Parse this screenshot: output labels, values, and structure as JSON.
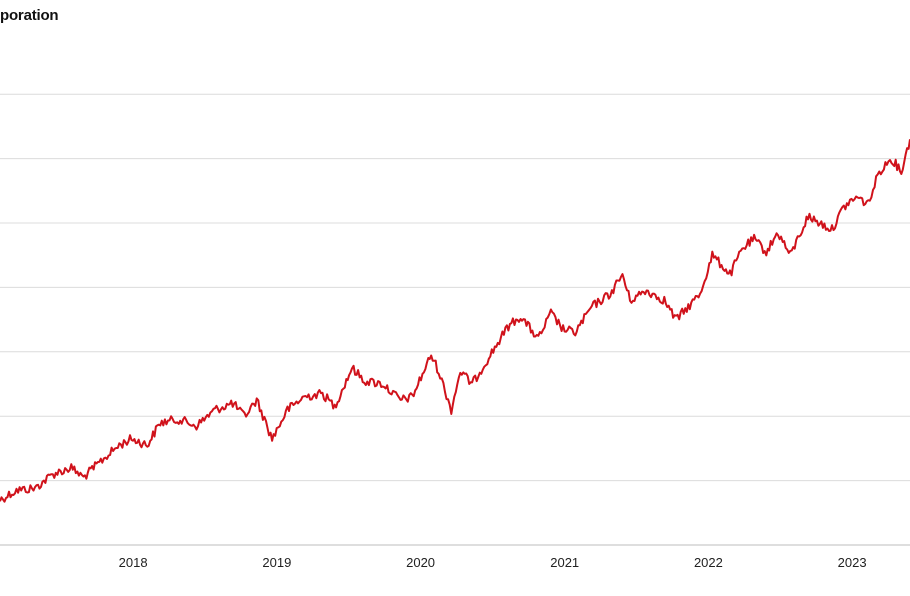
{
  "chart_data": {
    "type": "line",
    "title": "poration",
    "xlabel": "",
    "ylabel": "",
    "x_tick_labels": [
      "2018",
      "2019",
      "2020",
      "2021",
      "2022",
      "2023"
    ],
    "xlim": [
      "2017-02-01",
      "2023-06-01"
    ],
    "ylim": [
      0,
      7
    ],
    "grid": true,
    "legend": "none",
    "series": [
      {
        "color": "#d0121b",
        "points": [
          [
            "2017-02-01",
            0.7
          ],
          [
            "2017-03-15",
            0.85
          ],
          [
            "2017-05-01",
            0.88
          ],
          [
            "2017-06-15",
            1.1
          ],
          [
            "2017-08-01",
            1.2
          ],
          [
            "2017-09-01",
            1.05
          ],
          [
            "2017-10-15",
            1.3
          ],
          [
            "2017-12-01",
            1.55
          ],
          [
            "2018-01-01",
            1.65
          ],
          [
            "2018-02-10",
            1.55
          ],
          [
            "2018-03-15",
            1.9
          ],
          [
            "2018-05-01",
            1.95
          ],
          [
            "2018-06-15",
            1.85
          ],
          [
            "2018-08-01",
            2.1
          ],
          [
            "2018-09-15",
            2.2
          ],
          [
            "2018-10-15",
            2.0
          ],
          [
            "2018-11-15",
            2.25
          ],
          [
            "2018-12-24",
            1.65
          ],
          [
            "2019-02-01",
            2.1
          ],
          [
            "2019-03-15",
            2.3
          ],
          [
            "2019-05-01",
            2.35
          ],
          [
            "2019-06-01",
            2.15
          ],
          [
            "2019-07-15",
            2.75
          ],
          [
            "2019-08-15",
            2.55
          ],
          [
            "2019-10-01",
            2.5
          ],
          [
            "2019-11-15",
            2.25
          ],
          [
            "2019-12-15",
            2.3
          ],
          [
            "2020-02-01",
            2.95
          ],
          [
            "2020-02-20",
            2.7
          ],
          [
            "2020-03-23",
            2.1
          ],
          [
            "2020-04-15",
            2.7
          ],
          [
            "2020-05-15",
            2.5
          ],
          [
            "2020-06-15",
            2.8
          ],
          [
            "2020-08-15",
            3.4
          ],
          [
            "2020-09-15",
            3.55
          ],
          [
            "2020-10-30",
            3.2
          ],
          [
            "2020-12-01",
            3.6
          ],
          [
            "2021-01-01",
            3.35
          ],
          [
            "2021-02-01",
            3.3
          ],
          [
            "2021-03-15",
            3.7
          ],
          [
            "2021-05-01",
            3.9
          ],
          [
            "2021-06-01",
            4.2
          ],
          [
            "2021-06-20",
            3.8
          ],
          [
            "2021-08-01",
            3.95
          ],
          [
            "2021-09-15",
            3.8
          ],
          [
            "2021-10-15",
            3.5
          ],
          [
            "2021-11-15",
            3.7
          ],
          [
            "2021-12-15",
            3.9
          ],
          [
            "2022-01-15",
            4.5
          ],
          [
            "2022-02-15",
            4.3
          ],
          [
            "2022-03-01",
            4.2
          ],
          [
            "2022-04-01",
            4.6
          ],
          [
            "2022-05-01",
            4.75
          ],
          [
            "2022-06-01",
            4.55
          ],
          [
            "2022-07-01",
            4.85
          ],
          [
            "2022-08-01",
            4.5
          ],
          [
            "2022-09-15",
            5.1
          ],
          [
            "2022-10-15",
            5.0
          ],
          [
            "2022-11-15",
            4.9
          ],
          [
            "2022-12-15",
            5.25
          ],
          [
            "2023-01-15",
            5.4
          ],
          [
            "2023-02-15",
            5.3
          ],
          [
            "2023-03-15",
            5.8
          ],
          [
            "2023-04-15",
            6.0
          ],
          [
            "2023-05-10",
            5.8
          ],
          [
            "2023-06-01",
            6.3
          ]
        ]
      }
    ]
  }
}
